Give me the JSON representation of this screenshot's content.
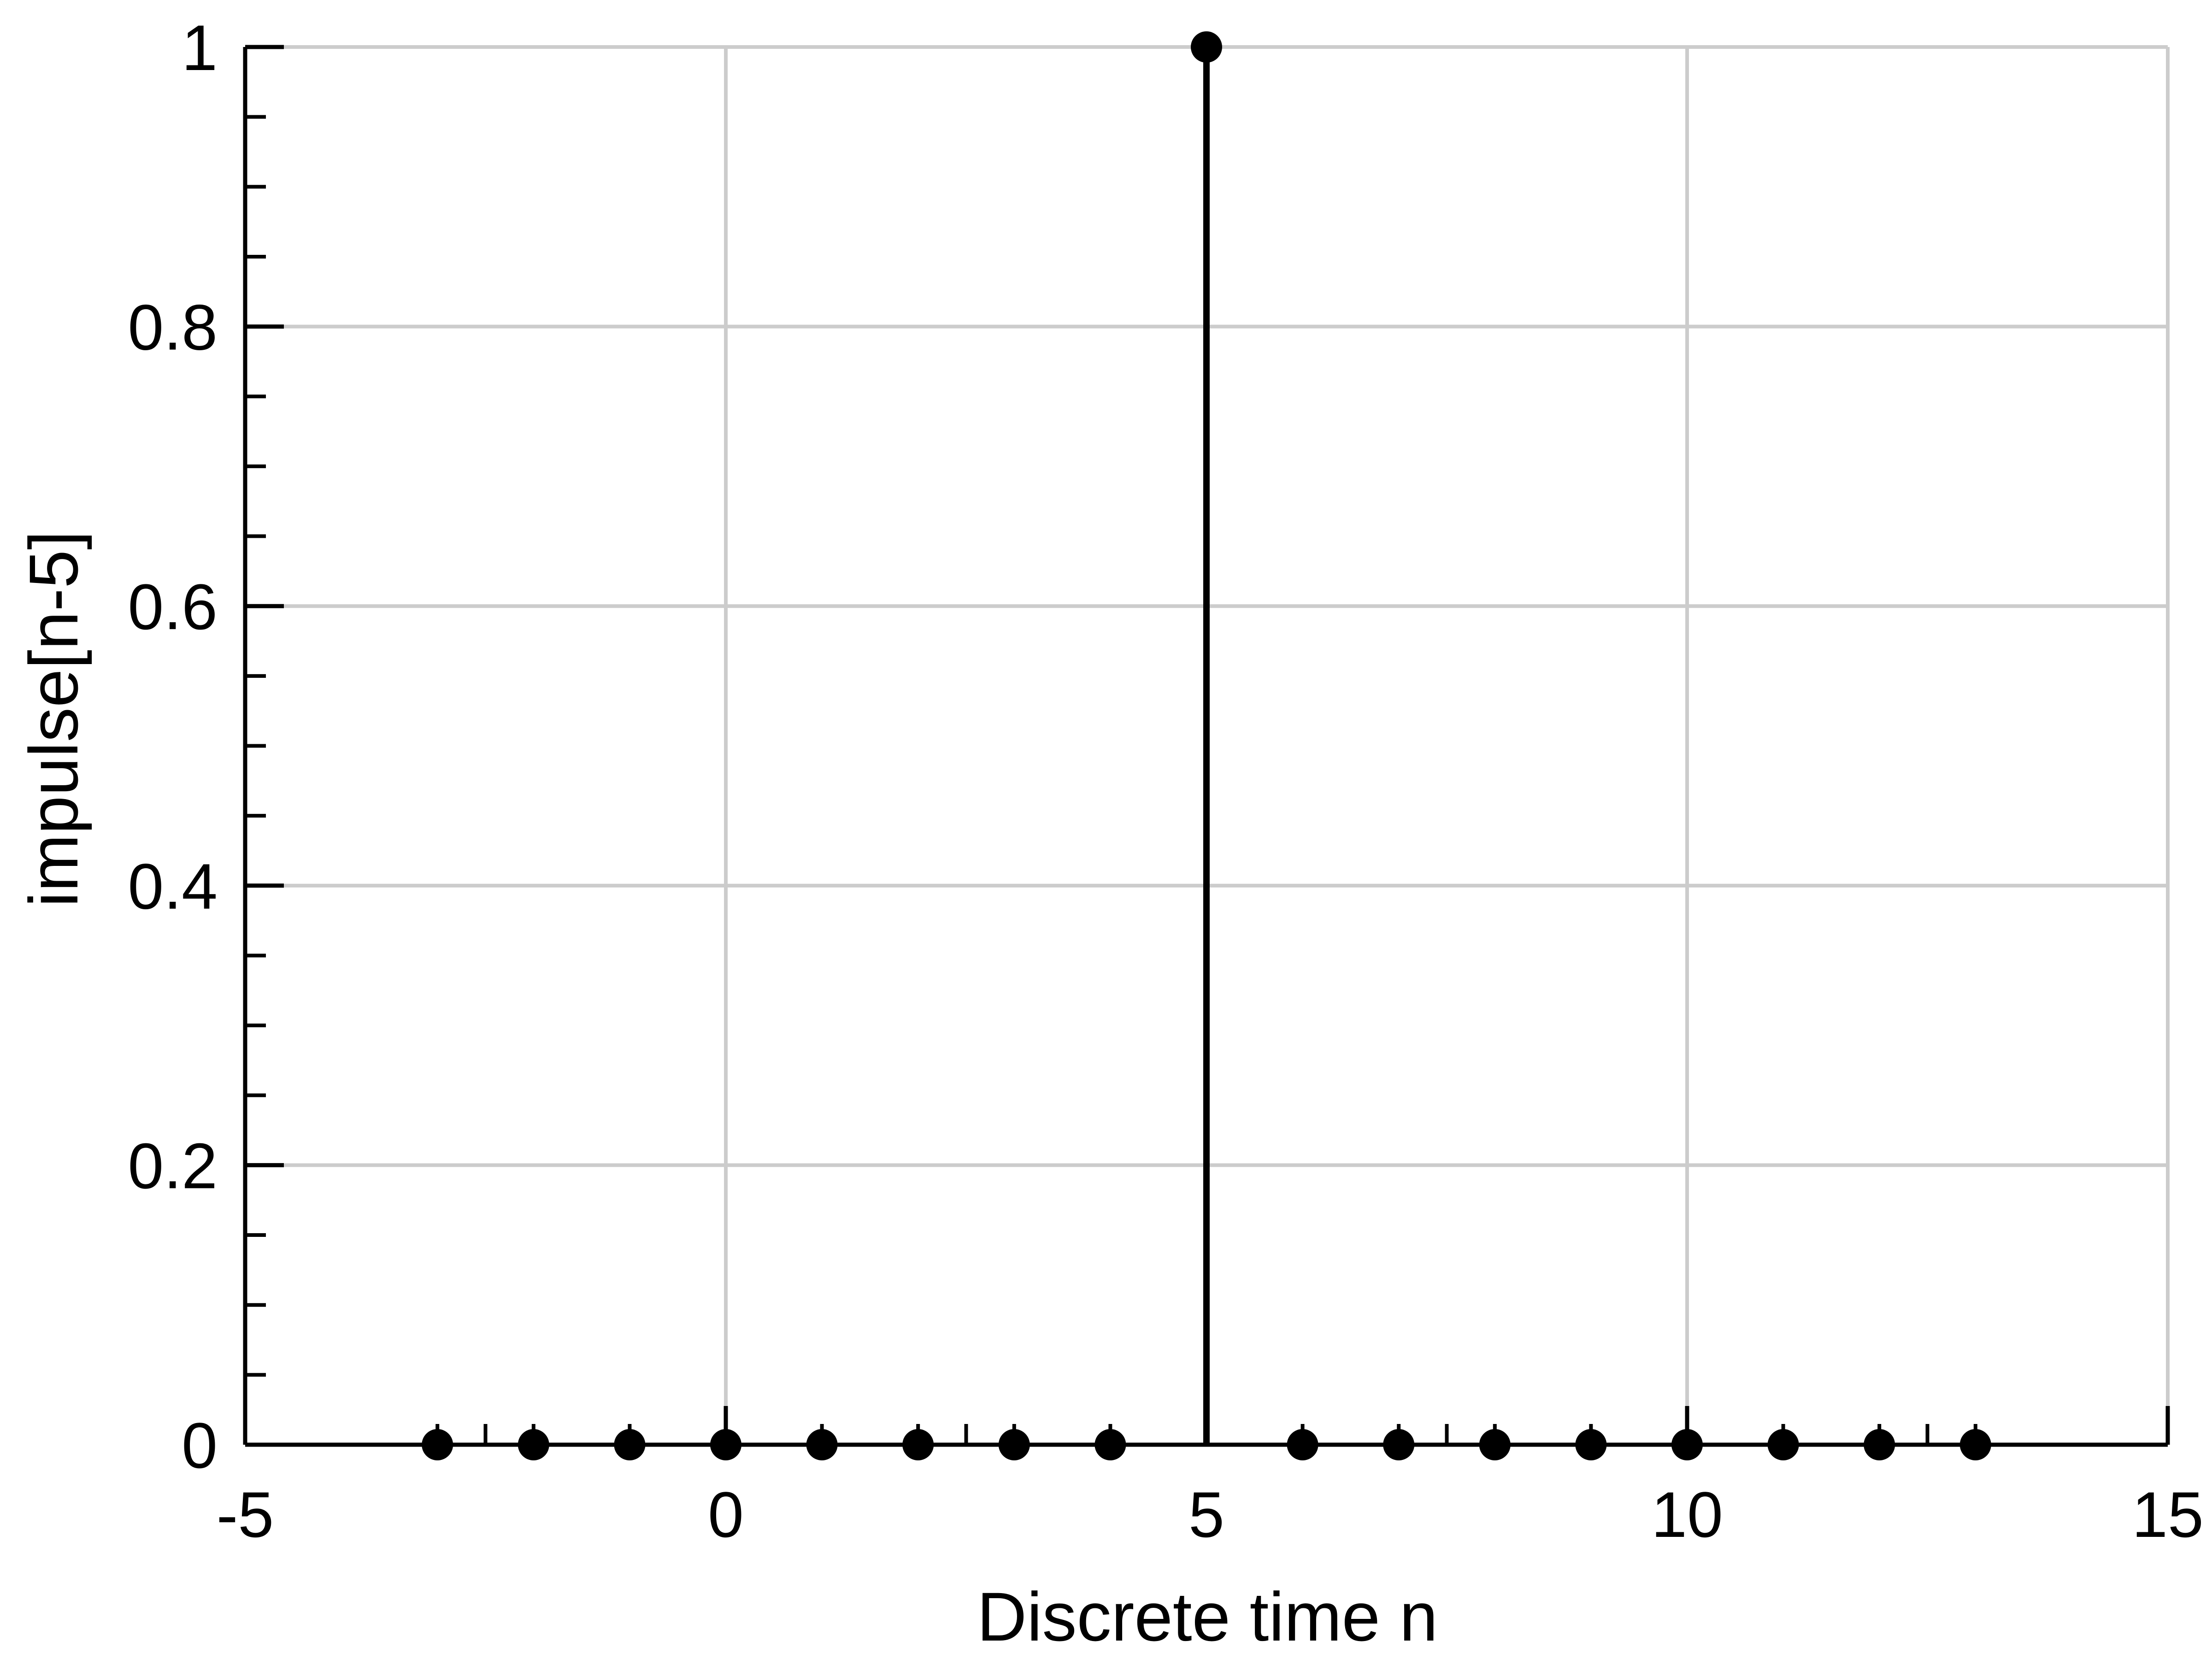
{
  "chart_data": {
    "type": "stem",
    "xlabel": "Discrete time n",
    "ylabel": "impulse[n-5]",
    "xlim": [
      -5,
      15
    ],
    "ylim": [
      0,
      1
    ],
    "grid": true,
    "x_ticks": [
      -5,
      0,
      5,
      10,
      15
    ],
    "x_tick_labels": [
      "-5",
      "0",
      "5",
      "10",
      "15"
    ],
    "y_ticks": [
      0,
      0.2,
      0.4,
      0.6,
      0.8,
      1
    ],
    "y_tick_labels": [
      "0",
      "0.2",
      "0.4",
      "0.6",
      "0.8",
      "1"
    ],
    "series": [
      {
        "x": [
          -3,
          -2,
          -1,
          0,
          1,
          2,
          3,
          4,
          5,
          6,
          7,
          8,
          9,
          10,
          11,
          12,
          13
        ],
        "y": [
          0,
          0,
          0,
          0,
          0,
          0,
          0,
          0,
          1,
          0,
          0,
          0,
          0,
          0,
          0,
          0,
          0
        ],
        "color": "#000000"
      }
    ],
    "colors": {
      "grid": "#cccccc",
      "axis": "#000000"
    }
  }
}
